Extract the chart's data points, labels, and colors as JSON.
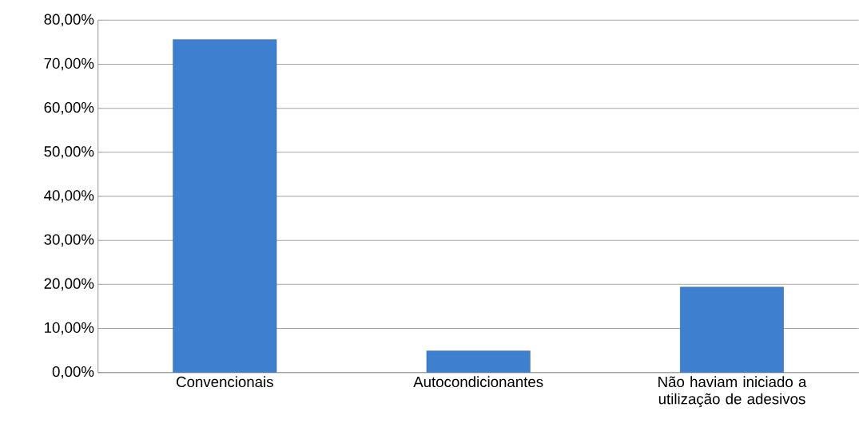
{
  "chart_data": {
    "type": "bar",
    "categories": [
      "Convencionais",
      "Autocondicionantes",
      "Não haviam iniciado a utilização de adesivos"
    ],
    "values": [
      75.6,
      4.9,
      19.4
    ],
    "color": "#3f7fcf",
    "ylim": [
      0,
      80
    ],
    "yticks": [
      {
        "value": 0,
        "label": "0,00%"
      },
      {
        "value": 10,
        "label": "10,00%"
      },
      {
        "value": 20,
        "label": "20,00%"
      },
      {
        "value": 30,
        "label": "30,00%"
      },
      {
        "value": 40,
        "label": "40,00%"
      },
      {
        "value": 50,
        "label": "50,00%"
      },
      {
        "value": 60,
        "label": "60,00%"
      },
      {
        "value": 70,
        "label": "70,00%"
      },
      {
        "value": 80,
        "label": "80,00%"
      }
    ],
    "grid": "y"
  }
}
